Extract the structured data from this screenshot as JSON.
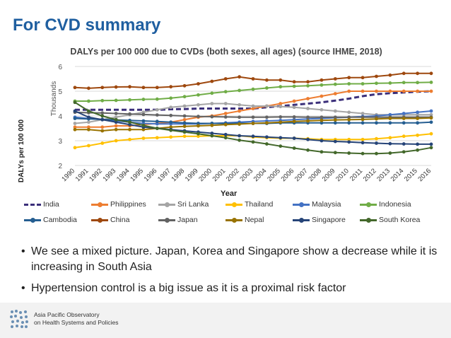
{
  "slide": {
    "title": "For CVD summary",
    "bullets": [
      "We see a mixed picture. Japan, Korea and Singapore show a decrease while it is increasing in South Asia",
      "Hypertension control is a big issue as it is a proximal risk factor"
    ],
    "footer": {
      "org_line1": "Asia Pacific Observatory",
      "org_line2": "on Health Systems and Policies"
    }
  },
  "chart_data": {
    "type": "line",
    "title": "DALYs per 100 000 due to CVDs (both sexes, all ages) (source IHME, 2018)",
    "xlabel": "Year",
    "ylabel": "DALYs per 100 000",
    "y_unit_label": "Thousands",
    "ylim": [
      2,
      6
    ],
    "yticks": [
      2,
      3,
      4,
      5,
      6
    ],
    "x": [
      "1990",
      "1991",
      "1992",
      "1993",
      "1994",
      "1995",
      "1996",
      "1997",
      "1998",
      "1999",
      "2000",
      "2001",
      "2002",
      "2003",
      "2004",
      "2005",
      "2006",
      "2007",
      "2008",
      "2009",
      "2010",
      "2011",
      "2012",
      "2013",
      "2014",
      "2015",
      "2016"
    ],
    "legend_position": "bottom",
    "series": [
      {
        "name": "India",
        "color": "#3b2f7a",
        "dashed": true,
        "values": [
          4.25,
          4.25,
          4.25,
          4.25,
          4.25,
          4.25,
          4.25,
          4.27,
          4.28,
          4.3,
          4.3,
          4.3,
          4.3,
          4.3,
          4.35,
          4.4,
          4.45,
          4.5,
          4.55,
          4.62,
          4.7,
          4.8,
          4.88,
          4.92,
          4.95,
          4.98,
          5.0
        ]
      },
      {
        "name": "Philippines",
        "color": "#ed7d31",
        "values": [
          3.55,
          3.55,
          3.55,
          3.6,
          3.6,
          3.65,
          3.7,
          3.75,
          3.85,
          3.95,
          4.0,
          4.1,
          4.2,
          4.3,
          4.4,
          4.5,
          4.6,
          4.7,
          4.8,
          4.9,
          5.0,
          5.0,
          5.0,
          5.0,
          5.0,
          5.0,
          5.0
        ]
      },
      {
        "name": "Sri Lanka",
        "color": "#a5a5a5",
        "values": [
          3.7,
          3.75,
          3.85,
          3.95,
          4.05,
          4.15,
          4.25,
          4.35,
          4.4,
          4.45,
          4.5,
          4.5,
          4.45,
          4.4,
          4.4,
          4.38,
          4.35,
          4.3,
          4.25,
          4.2,
          4.15,
          4.1,
          4.05,
          4.05,
          4.05,
          4.05,
          4.05
        ]
      },
      {
        "name": "Thailand",
        "color": "#ffc000",
        "values": [
          2.72,
          2.8,
          2.9,
          3.0,
          3.05,
          3.1,
          3.12,
          3.15,
          3.18,
          3.18,
          3.2,
          3.2,
          3.2,
          3.15,
          3.12,
          3.1,
          3.1,
          3.08,
          3.05,
          3.05,
          3.05,
          3.05,
          3.08,
          3.12,
          3.18,
          3.22,
          3.28
        ]
      },
      {
        "name": "Malaysia",
        "color": "#4472c4",
        "values": [
          3.95,
          3.9,
          3.85,
          3.8,
          3.75,
          3.7,
          3.68,
          3.68,
          3.68,
          3.68,
          3.7,
          3.72,
          3.75,
          3.78,
          3.8,
          3.82,
          3.85,
          3.88,
          3.9,
          3.93,
          3.95,
          3.98,
          4.0,
          4.05,
          4.1,
          4.15,
          4.2
        ]
      },
      {
        "name": "Indonesia",
        "color": "#70ad47",
        "values": [
          4.6,
          4.6,
          4.62,
          4.63,
          4.65,
          4.67,
          4.68,
          4.72,
          4.78,
          4.85,
          4.92,
          4.98,
          5.03,
          5.08,
          5.13,
          5.18,
          5.2,
          5.22,
          5.25,
          5.28,
          5.3,
          5.3,
          5.32,
          5.33,
          5.35,
          5.35,
          5.36
        ]
      },
      {
        "name": "Cambodia",
        "color": "#255e91",
        "values": [
          3.9,
          3.88,
          3.86,
          3.84,
          3.82,
          3.8,
          3.78,
          3.75,
          3.72,
          3.7,
          3.7,
          3.7,
          3.7,
          3.7,
          3.7,
          3.72,
          3.72,
          3.72,
          3.72,
          3.72,
          3.72,
          3.72,
          3.72,
          3.72,
          3.72,
          3.72,
          3.75
        ]
      },
      {
        "name": "China",
        "color": "#9e480e",
        "values": [
          5.15,
          5.12,
          5.15,
          5.17,
          5.18,
          5.15,
          5.15,
          5.18,
          5.22,
          5.3,
          5.4,
          5.5,
          5.58,
          5.5,
          5.45,
          5.45,
          5.38,
          5.38,
          5.45,
          5.5,
          5.55,
          5.55,
          5.6,
          5.65,
          5.72,
          5.72,
          5.72
        ]
      },
      {
        "name": "Japan",
        "color": "#636363",
        "values": [
          4.15,
          4.13,
          4.12,
          4.1,
          4.08,
          4.06,
          4.04,
          4.02,
          4.0,
          3.98,
          3.97,
          3.96,
          3.95,
          3.95,
          3.95,
          3.96,
          3.96,
          3.95,
          3.95,
          3.95,
          3.95,
          3.95,
          3.95,
          3.95,
          3.95,
          3.95,
          3.95
        ]
      },
      {
        "name": "Nepal",
        "color": "#997300",
        "values": [
          3.45,
          3.45,
          3.4,
          3.45,
          3.45,
          3.45,
          3.5,
          3.55,
          3.58,
          3.6,
          3.62,
          3.65,
          3.67,
          3.7,
          3.72,
          3.75,
          3.78,
          3.8,
          3.82,
          3.84,
          3.85,
          3.86,
          3.88,
          3.9,
          3.9,
          3.9,
          3.92
        ]
      },
      {
        "name": "Singapore",
        "color": "#264478",
        "values": [
          4.2,
          3.95,
          3.85,
          3.75,
          3.65,
          3.55,
          3.5,
          3.45,
          3.4,
          3.35,
          3.3,
          3.25,
          3.2,
          3.18,
          3.15,
          3.12,
          3.1,
          3.05,
          3.0,
          2.97,
          2.95,
          2.92,
          2.9,
          2.88,
          2.87,
          2.86,
          2.86
        ]
      },
      {
        "name": "South Korea",
        "color": "#43682b",
        "values": [
          4.55,
          4.2,
          4.0,
          3.85,
          3.75,
          3.62,
          3.5,
          3.42,
          3.35,
          3.28,
          3.2,
          3.12,
          3.02,
          2.95,
          2.87,
          2.78,
          2.7,
          2.62,
          2.55,
          2.52,
          2.5,
          2.48,
          2.48,
          2.5,
          2.55,
          2.62,
          2.72
        ]
      }
    ]
  }
}
